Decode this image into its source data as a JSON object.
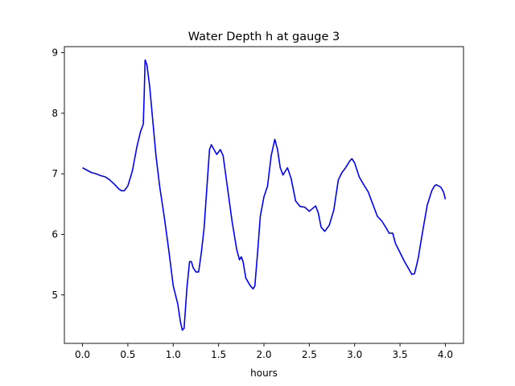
{
  "chart_data": {
    "type": "line",
    "title": "Water Depth h at gauge 3",
    "xlabel": "hours",
    "ylabel": "",
    "xlim": [
      -0.2,
      4.2
    ],
    "ylim": [
      4.2,
      9.1
    ],
    "xticks": [
      0.0,
      0.5,
      1.0,
      1.5,
      2.0,
      2.5,
      3.0,
      3.5,
      4.0
    ],
    "xtick_labels": [
      "0.0",
      "0.5",
      "1.0",
      "1.5",
      "2.0",
      "2.5",
      "3.0",
      "3.5",
      "4.0"
    ],
    "yticks": [
      5,
      6,
      7,
      8,
      9
    ],
    "ytick_labels": [
      "5",
      "6",
      "7",
      "8",
      "9"
    ],
    "grid": false,
    "legend": "none",
    "series": [
      {
        "color": "#0000ff",
        "points": [
          [
            0.0,
            7.1
          ],
          [
            0.05,
            7.06
          ],
          [
            0.1,
            7.02
          ],
          [
            0.15,
            7.0
          ],
          [
            0.2,
            6.97
          ],
          [
            0.25,
            6.95
          ],
          [
            0.3,
            6.9
          ],
          [
            0.35,
            6.83
          ],
          [
            0.4,
            6.75
          ],
          [
            0.43,
            6.72
          ],
          [
            0.46,
            6.72
          ],
          [
            0.5,
            6.8
          ],
          [
            0.55,
            7.05
          ],
          [
            0.6,
            7.45
          ],
          [
            0.64,
            7.7
          ],
          [
            0.67,
            7.82
          ],
          [
            0.68,
            8.3
          ],
          [
            0.69,
            8.88
          ],
          [
            0.71,
            8.8
          ],
          [
            0.74,
            8.45
          ],
          [
            0.77,
            7.95
          ],
          [
            0.81,
            7.3
          ],
          [
            0.85,
            6.8
          ],
          [
            0.9,
            6.3
          ],
          [
            0.95,
            5.75
          ],
          [
            1.0,
            5.15
          ],
          [
            1.05,
            4.85
          ],
          [
            1.08,
            4.55
          ],
          [
            1.1,
            4.42
          ],
          [
            1.12,
            4.45
          ],
          [
            1.15,
            5.1
          ],
          [
            1.18,
            5.55
          ],
          [
            1.2,
            5.55
          ],
          [
            1.22,
            5.45
          ],
          [
            1.25,
            5.38
          ],
          [
            1.28,
            5.38
          ],
          [
            1.31,
            5.7
          ],
          [
            1.34,
            6.1
          ],
          [
            1.37,
            6.75
          ],
          [
            1.4,
            7.4
          ],
          [
            1.42,
            7.48
          ],
          [
            1.45,
            7.4
          ],
          [
            1.48,
            7.32
          ],
          [
            1.52,
            7.4
          ],
          [
            1.55,
            7.3
          ],
          [
            1.6,
            6.75
          ],
          [
            1.65,
            6.2
          ],
          [
            1.7,
            5.75
          ],
          [
            1.73,
            5.58
          ],
          [
            1.75,
            5.63
          ],
          [
            1.77,
            5.55
          ],
          [
            1.8,
            5.28
          ],
          [
            1.85,
            5.15
          ],
          [
            1.88,
            5.1
          ],
          [
            1.9,
            5.15
          ],
          [
            1.93,
            5.7
          ],
          [
            1.96,
            6.3
          ],
          [
            2.0,
            6.62
          ],
          [
            2.04,
            6.8
          ],
          [
            2.08,
            7.3
          ],
          [
            2.12,
            7.57
          ],
          [
            2.15,
            7.4
          ],
          [
            2.18,
            7.1
          ],
          [
            2.21,
            6.98
          ],
          [
            2.23,
            7.03
          ],
          [
            2.26,
            7.1
          ],
          [
            2.3,
            6.92
          ],
          [
            2.35,
            6.55
          ],
          [
            2.4,
            6.46
          ],
          [
            2.45,
            6.45
          ],
          [
            2.5,
            6.38
          ],
          [
            2.53,
            6.42
          ],
          [
            2.57,
            6.47
          ],
          [
            2.6,
            6.35
          ],
          [
            2.63,
            6.12
          ],
          [
            2.67,
            6.05
          ],
          [
            2.72,
            6.15
          ],
          [
            2.77,
            6.4
          ],
          [
            2.82,
            6.9
          ],
          [
            2.86,
            7.02
          ],
          [
            2.9,
            7.1
          ],
          [
            2.95,
            7.22
          ],
          [
            2.97,
            7.25
          ],
          [
            3.0,
            7.18
          ],
          [
            3.05,
            6.95
          ],
          [
            3.1,
            6.82
          ],
          [
            3.15,
            6.7
          ],
          [
            3.2,
            6.5
          ],
          [
            3.25,
            6.3
          ],
          [
            3.3,
            6.22
          ],
          [
            3.35,
            6.1
          ],
          [
            3.38,
            6.02
          ],
          [
            3.42,
            6.02
          ],
          [
            3.45,
            5.85
          ],
          [
            3.5,
            5.7
          ],
          [
            3.55,
            5.55
          ],
          [
            3.6,
            5.42
          ],
          [
            3.63,
            5.34
          ],
          [
            3.66,
            5.35
          ],
          [
            3.7,
            5.6
          ],
          [
            3.75,
            6.05
          ],
          [
            3.8,
            6.48
          ],
          [
            3.85,
            6.72
          ],
          [
            3.88,
            6.8
          ],
          [
            3.9,
            6.82
          ],
          [
            3.95,
            6.78
          ],
          [
            3.98,
            6.7
          ],
          [
            4.0,
            6.58
          ]
        ]
      }
    ]
  }
}
